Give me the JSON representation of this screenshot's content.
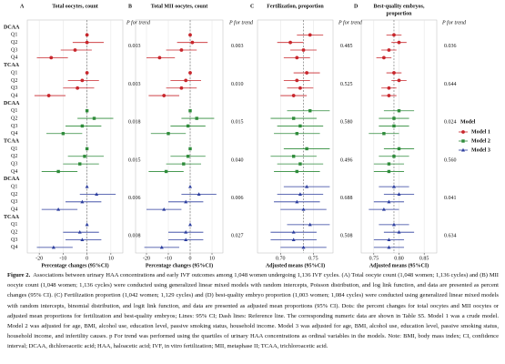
{
  "chart_data": [
    {
      "type": "forest",
      "letter": "A",
      "title": [
        "Total oocytes, count"
      ],
      "xlabel": "Percentage changes (95%CI)",
      "p_header": "P for trend",
      "xlim": [
        -25,
        15
      ],
      "xticks": [
        -20,
        -10,
        0,
        10
      ],
      "ref_line": 0,
      "series": [
        {
          "values": [
            0,
            0,
            -5,
            -15,
            0,
            -2,
            -4,
            -16
          ],
          "lower": [
            0,
            -6,
            -11,
            -21,
            0,
            -8,
            -10,
            -22
          ],
          "upper": [
            0,
            7,
            2,
            -8,
            0,
            5,
            3,
            -9
          ],
          "p_trend": [
            "0.003",
            "0.003"
          ]
        },
        {
          "values": [
            0,
            3,
            -2,
            -10,
            0,
            -1,
            -3,
            -12
          ],
          "lower": [
            0,
            -4,
            -9,
            -17,
            0,
            -8,
            -10,
            -19
          ],
          "upper": [
            0,
            11,
            6,
            -2,
            0,
            7,
            5,
            -4
          ],
          "p_trend": [
            "0.018",
            "0.015"
          ]
        },
        {
          "values": [
            0,
            4,
            -2,
            -12,
            0,
            -3,
            -2,
            -14
          ],
          "lower": [
            0,
            -3,
            -9,
            -19,
            0,
            -10,
            -9,
            -21
          ],
          "upper": [
            0,
            12,
            6,
            -4,
            0,
            5,
            6,
            -6
          ],
          "p_trend": [
            "0.006",
            "0.008"
          ]
        }
      ]
    },
    {
      "type": "forest",
      "letter": "B",
      "title": [
        "Total MII oocytes, count"
      ],
      "xlabel": "Percentage changes (95%CI)",
      "p_header": "P for trend",
      "xlim": [
        -25,
        15
      ],
      "xticks": [
        -20,
        -10,
        0,
        10
      ],
      "ref_line": 0,
      "series": [
        {
          "values": [
            0,
            1,
            -4,
            -14,
            0,
            -2,
            -4,
            -12
          ],
          "lower": [
            0,
            -6,
            -11,
            -20,
            0,
            -9,
            -11,
            -19
          ],
          "upper": [
            0,
            8,
            3,
            -7,
            0,
            5,
            3,
            -5
          ],
          "p_trend": [
            "0.003",
            "0.010"
          ]
        },
        {
          "values": [
            0,
            3,
            -1,
            -10,
            0,
            -1,
            -3,
            -11
          ],
          "lower": [
            0,
            -4,
            -9,
            -18,
            0,
            -9,
            -11,
            -19
          ],
          "upper": [
            0,
            11,
            7,
            -2,
            0,
            7,
            5,
            -3
          ],
          "p_trend": [
            "0.015",
            "0.040"
          ]
        },
        {
          "values": [
            0,
            4,
            -2,
            -12,
            0,
            -2,
            -2,
            -13
          ],
          "lower": [
            0,
            -4,
            -10,
            -20,
            0,
            -10,
            -10,
            -21
          ],
          "upper": [
            0,
            12,
            6,
            -4,
            0,
            6,
            6,
            -5
          ],
          "p_trend": [
            "0.006",
            "0.027"
          ]
        }
      ]
    },
    {
      "type": "forest",
      "letter": "C",
      "title": [
        "Fertilization, proportion"
      ],
      "xlabel": "Adjusted means (95%CI)",
      "p_header": "P for trend",
      "xlim": [
        0.665,
        0.78
      ],
      "xticks": [
        {
          "value": 0.7,
          "label": "0.70"
        },
        0.75
      ],
      "ref_line": 0.735,
      "series": [
        {
          "values": [
            0.745,
            0.715,
            0.735,
            0.725,
            0.74,
            0.725,
            0.73,
            0.72
          ],
          "lower": [
            0.725,
            0.695,
            0.715,
            0.705,
            0.72,
            0.705,
            0.71,
            0.7
          ],
          "upper": [
            0.765,
            0.735,
            0.755,
            0.745,
            0.76,
            0.745,
            0.75,
            0.74
          ],
          "p_trend": [
            "0.485",
            "0.525"
          ]
        },
        {
          "values": [
            0.745,
            0.72,
            0.73,
            0.725,
            0.74,
            0.72,
            0.73,
            0.725
          ],
          "lower": [
            0.71,
            0.685,
            0.695,
            0.69,
            0.705,
            0.685,
            0.695,
            0.69
          ],
          "upper": [
            0.775,
            0.755,
            0.765,
            0.76,
            0.775,
            0.755,
            0.765,
            0.76
          ],
          "p_trend": [
            "0.580",
            "0.496"
          ]
        },
        {
          "values": [
            0.74,
            0.73,
            0.725,
            0.735,
            0.745,
            0.72,
            0.72,
            0.735
          ],
          "lower": [
            0.705,
            0.695,
            0.69,
            0.7,
            0.71,
            0.685,
            0.685,
            0.7
          ],
          "upper": [
            0.775,
            0.765,
            0.76,
            0.77,
            0.775,
            0.755,
            0.755,
            0.77
          ],
          "p_trend": [
            "0.688",
            "0.508"
          ]
        }
      ]
    },
    {
      "type": "forest",
      "letter": "D",
      "title": [
        "Best-quality embryos,",
        "proportion"
      ],
      "xlabel": "Adjusted means (95%CI)",
      "p_header": "P for trend",
      "xlim": [
        0.725,
        0.875
      ],
      "xticks": [
        0.75,
        {
          "value": 0.8,
          "label": "0.80"
        },
        0.85
      ],
      "ref_line": 0.79,
      "series": [
        {
          "values": [
            0.79,
            0.8,
            0.78,
            0.77,
            0.79,
            0.8,
            0.78,
            0.78
          ],
          "lower": [
            0.775,
            0.785,
            0.765,
            0.755,
            0.775,
            0.785,
            0.765,
            0.765
          ],
          "upper": [
            0.805,
            0.815,
            0.795,
            0.785,
            0.805,
            0.815,
            0.795,
            0.795
          ],
          "p_trend": [
            "0.036",
            "0.644"
          ]
        },
        {
          "values": [
            0.8,
            0.79,
            0.79,
            0.77,
            0.8,
            0.79,
            0.78,
            0.78
          ],
          "lower": [
            0.77,
            0.76,
            0.76,
            0.74,
            0.77,
            0.76,
            0.75,
            0.75
          ],
          "upper": [
            0.83,
            0.82,
            0.82,
            0.8,
            0.83,
            0.82,
            0.81,
            0.81
          ],
          "p_trend": [
            "0.024",
            "0.560"
          ]
        },
        {
          "values": [
            0.79,
            0.8,
            0.78,
            0.77,
            0.79,
            0.8,
            0.78,
            0.78
          ],
          "lower": [
            0.76,
            0.77,
            0.75,
            0.74,
            0.76,
            0.77,
            0.75,
            0.75
          ],
          "upper": [
            0.82,
            0.83,
            0.81,
            0.8,
            0.82,
            0.83,
            0.81,
            0.81
          ],
          "p_trend": [
            "0.041",
            "0.634"
          ]
        }
      ]
    }
  ],
  "rows": {
    "groups": [
      "DCAA",
      "TCAA"
    ],
    "categories": [
      "Q1",
      "Q2",
      "Q3",
      "Q4"
    ]
  },
  "legend": {
    "title": "Model",
    "models": [
      {
        "name": "Model 1",
        "color": "#c8262c",
        "marker": "circle"
      },
      {
        "name": "Model 2",
        "color": "#2e8b3a",
        "marker": "square"
      },
      {
        "name": "Model 3",
        "color": "#2c3e9e",
        "marker": "triangle"
      }
    ]
  },
  "caption": {
    "label": "Figure 2.",
    "text": "Associations between urinary HAA concentrations and early IVF outcomes among 1,048 women undergoing 1,136 IVF cycles. (A) Total oocyte count (1,048 women; 1,136 cycles) and (B) MII oocyte count (1,048 women; 1,136 cycles) were conducted using generalized linear mixed models with random intercepts, Poisson distribution, and log link function, and data are presented as percent changes (95% CI). (C) Fertilization proportion (1,042 women; 1,129 cycles) and (D) best-quality embryo proportion (1,003 women; 1,084 cycles) were conducted using generalized linear mixed models with random intercepts, binomial distribution, and logit link function, and data are presented as adjusted mean proportions (95% CI). Dots: the percent changes for total oocytes and MII oocytes or adjusted mean proportions for fertilization and best-quality embryos; Lines: 95% CI; Dash lines: Reference line. The corresponding numeric data are shown in Table S5. Model 1 was a crude model. Model 2 was adjusted for age, BMI, alcohol use, education level, passive smoking status, household income. Model 3 was adjusted for age, BMI, alcohol use, education level, passive smoking status, household income, and infertility causes. p For trend was performed using the quartiles of urinary HAA concentrations as ordinal variables in the models. Note: BMI, body mass index; CI, confidence interval; DCAA, dichloroacetic acid; HAA, haloacetic acid; IVF, in vitro fertilization; MII, metaphase II; TCAA, trichloroacetic acid."
  }
}
